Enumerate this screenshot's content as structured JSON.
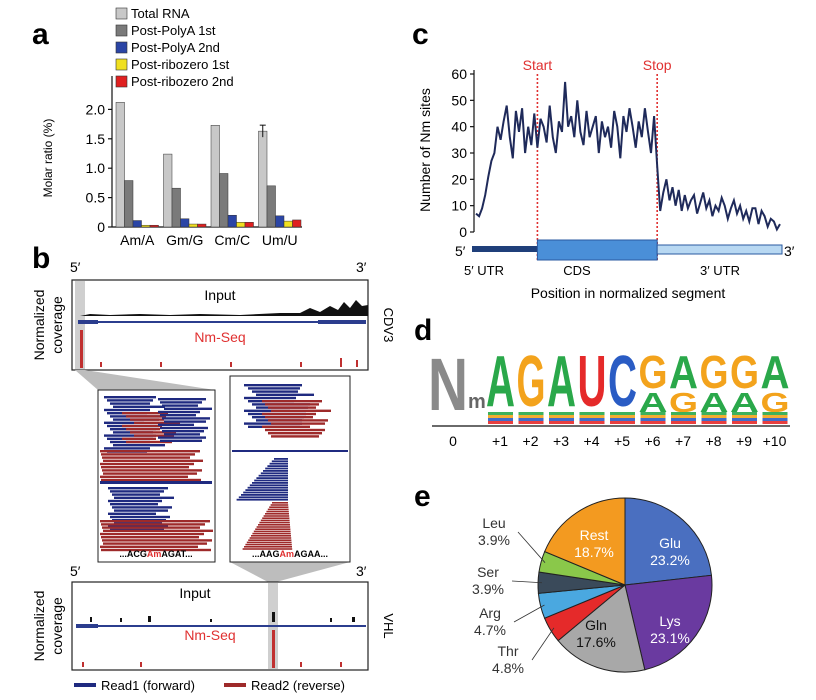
{
  "panels": {
    "a": "a",
    "b": "b",
    "c": "c",
    "d": "d",
    "e": "e"
  },
  "panel_a": {
    "ylabel": "Molar ratio (%)",
    "colors": [
      "#c8c8c8",
      "#7a7a7a",
      "#2b45a5",
      "#f0e020",
      "#e02020"
    ],
    "chart_data": {
      "type": "bar",
      "categories": [
        "Am/A",
        "Gm/G",
        "Cm/C",
        "Um/U"
      ],
      "series": [
        {
          "name": "Total RNA",
          "values": [
            2.12,
            1.24,
            1.73,
            1.63
          ]
        },
        {
          "name": "Post-PolyA 1st",
          "values": [
            0.79,
            0.66,
            0.91,
            0.7
          ]
        },
        {
          "name": "Post-PolyA 2nd",
          "values": [
            0.11,
            0.14,
            0.2,
            0.19
          ]
        },
        {
          "name": "Post-ribozero 1st",
          "values": [
            0.03,
            0.05,
            0.08,
            0.1
          ]
        },
        {
          "name": "Post-ribozero 2nd",
          "values": [
            0.03,
            0.05,
            0.08,
            0.12
          ]
        }
      ],
      "ylim": [
        0,
        2.5
      ],
      "yticks": [
        "0",
        "0.5",
        "1.0",
        "1.5",
        "2.0"
      ],
      "ytick_values": [
        0,
        0.5,
        1.0,
        1.5,
        2.0
      ],
      "legend": "top-left"
    }
  },
  "panel_b": {
    "top": {
      "five": "5′",
      "three": "3′",
      "input": "Input",
      "nmseq": "Nm-Seq",
      "gene": "CDV3"
    },
    "bottom": {
      "five": "5′",
      "three": "3′",
      "input": "Input",
      "nmseq": "Nm-Seq",
      "gene": "VHL"
    },
    "ylabel_line1": "Normalized",
    "ylabel_line2": "coverage",
    "seq_left": {
      "pre": "...ACG",
      "nm": "Am",
      "post": "AGAT..."
    },
    "seq_right": {
      "pre": "...AAG",
      "nm": "Am",
      "post": "AGAA..."
    },
    "legend": [
      "Read1 (forward)",
      "Read2 (reverse)"
    ],
    "forward_color": "#1f2a80",
    "reverse_color": "#9e2a2a",
    "nm_color": "#e03030"
  },
  "panel_c": {
    "ylabel": "Number of Nm sites",
    "xlabel": "Position in normalized segment",
    "start_label": "Start",
    "stop_label": "Stop",
    "region_labels": [
      "5′ UTR",
      "CDS",
      "3′ UTR"
    ],
    "five": "5′",
    "three": "3′",
    "line_color": "#1f2a5a",
    "marker_color": "#e03030",
    "chart_data": {
      "type": "line",
      "ylim": [
        0,
        60
      ],
      "yticks": [
        "0",
        "10",
        "20",
        "30",
        "40",
        "50",
        "60"
      ],
      "ytick_values": [
        0,
        10,
        20,
        30,
        40,
        50,
        60
      ],
      "x": [
        0,
        1,
        2,
        3,
        4,
        5,
        6,
        7,
        8,
        9,
        10,
        11,
        12,
        13,
        14,
        15,
        16,
        17,
        18,
        19,
        20,
        21,
        22,
        23,
        24,
        25,
        26,
        27,
        28,
        29,
        30,
        31,
        32,
        33,
        34,
        35,
        36,
        37,
        38,
        39,
        40,
        41,
        42,
        43,
        44,
        45,
        46,
        47,
        48,
        49,
        50,
        51,
        52,
        53,
        54,
        55,
        56,
        57,
        58,
        59,
        60,
        61,
        62,
        63,
        64,
        65,
        66,
        67,
        68,
        69,
        70,
        71,
        72,
        73,
        74,
        75,
        76,
        77,
        78,
        79,
        80,
        81,
        82,
        83,
        84,
        85,
        86,
        87,
        88,
        89,
        90,
        91,
        92,
        93,
        94,
        95,
        96,
        97,
        98,
        99
      ],
      "y": [
        7,
        6,
        9,
        14,
        21,
        27,
        30,
        40,
        35,
        42,
        48,
        36,
        28,
        46,
        38,
        47,
        30,
        40,
        33,
        45,
        32,
        43,
        40,
        34,
        48,
        36,
        30,
        42,
        38,
        57,
        40,
        44,
        36,
        50,
        38,
        33,
        46,
        36,
        40,
        44,
        30,
        42,
        36,
        40,
        32,
        46,
        40,
        28,
        44,
        38,
        47,
        40,
        32,
        42,
        36,
        47,
        38,
        30,
        44,
        25,
        8,
        15,
        20,
        12,
        17,
        10,
        16,
        8,
        14,
        9,
        12,
        14,
        7,
        11,
        15,
        9,
        12,
        6,
        10,
        8,
        13,
        10,
        5,
        9,
        12,
        7,
        10,
        5,
        8,
        4,
        9,
        9,
        3,
        8,
        6,
        2,
        5,
        4,
        1,
        3
      ],
      "start": 20,
      "stop": 59
    }
  },
  "panel_d": {
    "letters": [
      "N",
      "m",
      "A",
      "G",
      "A",
      "U",
      "C",
      "G",
      "A",
      "G",
      "G",
      "A"
    ],
    "sublabels": [
      "",
      "",
      "",
      "",
      "",
      "",
      "",
      "A",
      "G",
      "A",
      "A",
      "G"
    ],
    "positions": [
      "0",
      "+1",
      "+2",
      "+3",
      "+4",
      "+5",
      "+6",
      "+7",
      "+8",
      "+9",
      "+10"
    ],
    "colors": {
      "A": "#2aa84a",
      "G": "#f3a31c",
      "C": "#2a5cc4",
      "U": "#e52a2a",
      "N": "#8a8a8a"
    }
  },
  "panel_e": {
    "chart_data": {
      "type": "pie",
      "slices": [
        {
          "name": "Glu",
          "value": 23.2,
          "label": "23.2%",
          "color": "#4a6fc0"
        },
        {
          "name": "Lys",
          "value": 23.1,
          "label": "23.1%",
          "color": "#6a3aa0"
        },
        {
          "name": "Gln",
          "value": 17.6,
          "label": "17.6%",
          "color": "#a8a8a8"
        },
        {
          "name": "Thr",
          "value": 4.8,
          "label": "4.8%",
          "color": "#e52a2a"
        },
        {
          "name": "Arg",
          "value": 4.7,
          "label": "4.7%",
          "color": "#4aa8e0"
        },
        {
          "name": "Ser",
          "value": 3.9,
          "label": "3.9%",
          "color": "#3a4a5a"
        },
        {
          "name": "Leu",
          "value": 3.9,
          "label": "3.9%",
          "color": "#8ac84a"
        },
        {
          "name": "Rest",
          "value": 18.7,
          "label": "18.7%",
          "color": "#f39a20"
        }
      ]
    }
  }
}
